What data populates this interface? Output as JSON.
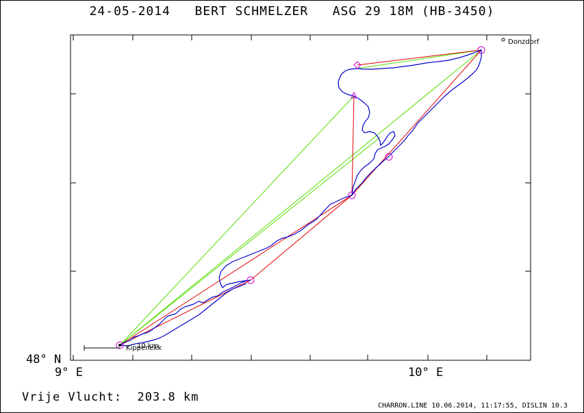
{
  "header": {
    "date": "24-05-2014",
    "pilot": "BERT SCHMELZER",
    "glider": "ASG 29 18M (HB-3450)"
  },
  "axes": {
    "y_label": "48° N",
    "x_label_left": "9° E",
    "x_label_right": "10° E"
  },
  "places": {
    "start": "Kippenekk",
    "scale": "10 km",
    "turn": "Donzdorf"
  },
  "footer": {
    "distance_label": "Vrije Vlucht:",
    "distance_value": "203.8 km",
    "software": "CHARRON.LINE 10.06.2014, 11:17:55, DISLIN 10.3"
  },
  "colors": {
    "track": "#0000cc",
    "task_legs": "#dd0000",
    "optimized_legs": "#55dd00",
    "turnpoints": "#cc00cc"
  }
}
